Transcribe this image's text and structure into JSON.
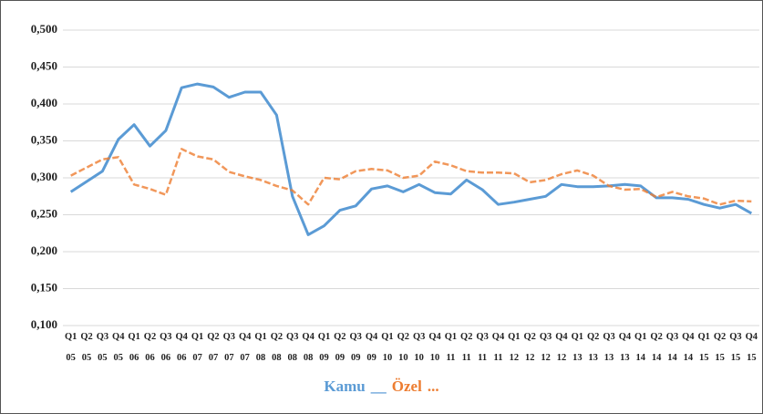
{
  "chart_data": {
    "type": "line",
    "categories": [
      "Q1\n05",
      "Q2\n05",
      "Q3\n05",
      "Q4\n05",
      "Q1\n06",
      "Q2\n06",
      "Q3\n06",
      "Q4\n06",
      "Q1\n07",
      "Q2\n07",
      "Q3\n07",
      "Q4\n07",
      "Q1\n08",
      "Q2\n08",
      "Q3\n08",
      "Q4\n08",
      "Q1\n09",
      "Q2\n09",
      "Q3\n09",
      "Q4\n09",
      "Q1\n10",
      "Q2\n10",
      "Q3\n10",
      "Q4\n10",
      "Q1\n11",
      "Q2\n11",
      "Q3\n11",
      "Q4\n11",
      "Q1\n12",
      "Q2\n12",
      "Q3\n12",
      "Q4\n12",
      "Q1\n13",
      "Q2\n13",
      "Q3\n13",
      "Q4\n13",
      "Q1\n14",
      "Q2\n14",
      "Q3\n14",
      "Q4\n14",
      "Q1\n15",
      "Q2\n15",
      "Q3\n15",
      "Q4\n15"
    ],
    "series": [
      {
        "name": "Kamu",
        "style_label": "__",
        "color": "#5b9bd5",
        "line_style": "solid",
        "values": [
          0.281,
          0.295,
          0.309,
          0.352,
          0.372,
          0.343,
          0.364,
          0.422,
          0.427,
          0.423,
          0.409,
          0.416,
          0.416,
          0.385,
          0.275,
          0.223,
          0.235,
          0.256,
          0.262,
          0.285,
          0.289,
          0.281,
          0.291,
          0.28,
          0.278,
          0.297,
          0.284,
          0.264,
          0.267,
          0.271,
          0.275,
          0.291,
          0.288,
          0.288,
          0.289,
          0.291,
          0.289,
          0.273,
          0.273,
          0.271,
          0.264,
          0.259,
          0.264,
          0.252
        ]
      },
      {
        "name": "Özel",
        "style_label": "...",
        "color": "#ed7d31",
        "line_style": "dashed",
        "values": [
          0.303,
          0.314,
          0.325,
          0.328,
          0.291,
          0.285,
          0.277,
          0.339,
          0.329,
          0.325,
          0.308,
          0.302,
          0.297,
          0.289,
          0.283,
          0.264,
          0.3,
          0.298,
          0.309,
          0.312,
          0.31,
          0.3,
          0.303,
          0.322,
          0.317,
          0.309,
          0.307,
          0.307,
          0.306,
          0.294,
          0.297,
          0.305,
          0.31,
          0.303,
          0.289,
          0.284,
          0.285,
          0.274,
          0.281,
          0.275,
          0.272,
          0.264,
          0.269,
          0.268
        ]
      }
    ],
    "ylim": [
      0.1,
      0.5
    ],
    "yticks": [
      {
        "value": 0.1,
        "label": "0,100"
      },
      {
        "value": 0.15,
        "label": "0,150"
      },
      {
        "value": 0.2,
        "label": "0,200"
      },
      {
        "value": 0.25,
        "label": "0,250"
      },
      {
        "value": 0.3,
        "label": "0,300"
      },
      {
        "value": 0.35,
        "label": "0,350"
      },
      {
        "value": 0.4,
        "label": "0,400"
      },
      {
        "value": 0.45,
        "label": "0,450"
      },
      {
        "value": 0.5,
        "label": "0,500"
      }
    ],
    "grid": true
  }
}
